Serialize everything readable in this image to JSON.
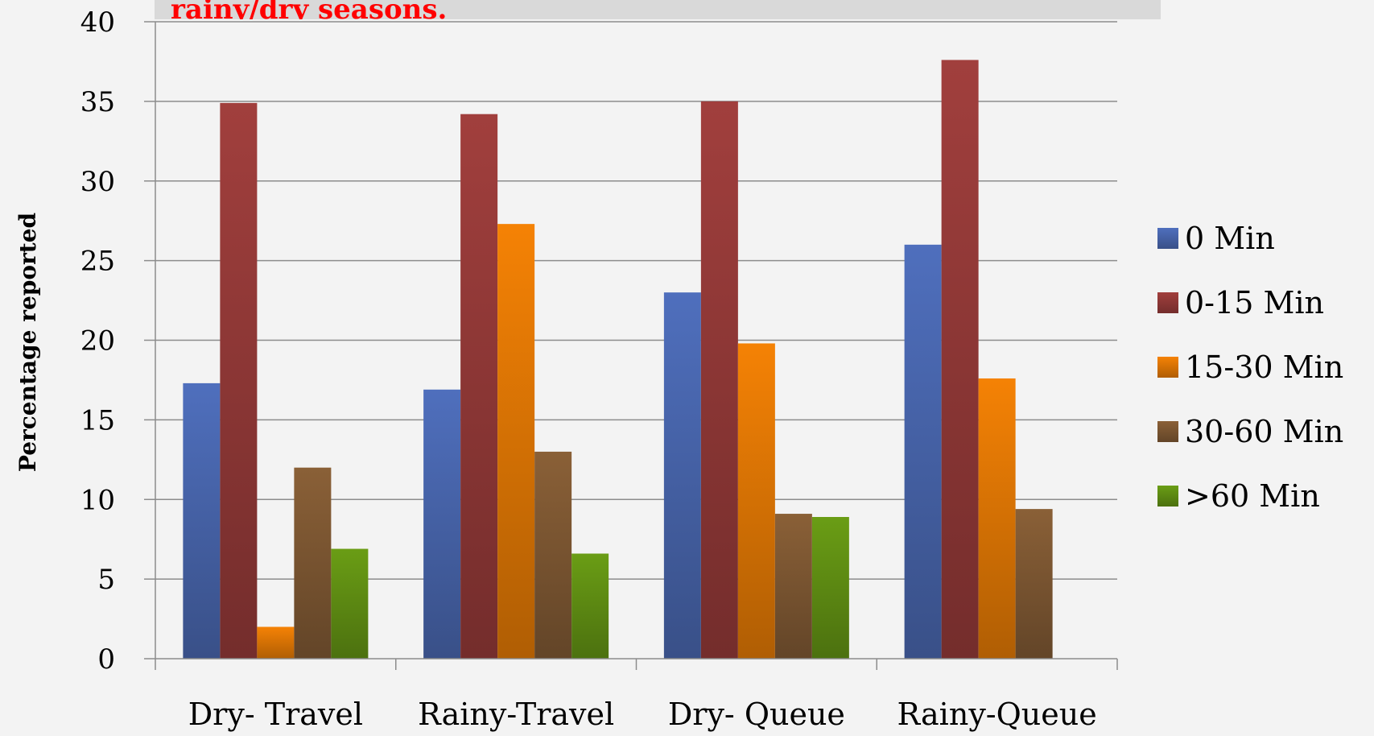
{
  "chart_data": {
    "type": "bar",
    "title": "rainy/dry seasons.",
    "xlabel": "",
    "ylabel": "Percentage reported",
    "ylim": [
      0,
      40
    ],
    "yticks": [
      0,
      5,
      10,
      15,
      20,
      25,
      30,
      35,
      40
    ],
    "grid": true,
    "legend_position": "right",
    "categories": [
      "Dry- Travel",
      "Rainy-Travel",
      "Dry- Queue",
      "Rainy-Queue"
    ],
    "series": [
      {
        "name": "0 Min",
        "color": "#4f6fbd",
        "values": [
          17.3,
          16.9,
          23.0,
          26.0
        ]
      },
      {
        "name": "0-15 Min",
        "color": "#a13f3d",
        "values": [
          34.9,
          34.2,
          35.0,
          37.6
        ]
      },
      {
        "name": "15-30 Min",
        "color": "#f58205",
        "values": [
          2.0,
          27.3,
          19.8,
          17.6
        ]
      },
      {
        "name": "30-60 Min",
        "color": "#8a6037",
        "values": [
          12.0,
          13.0,
          9.1,
          9.4
        ]
      },
      {
        "name": ">60 Min",
        "color": "#6a9d15",
        "values": [
          6.9,
          6.6,
          8.9,
          null
        ]
      }
    ]
  }
}
